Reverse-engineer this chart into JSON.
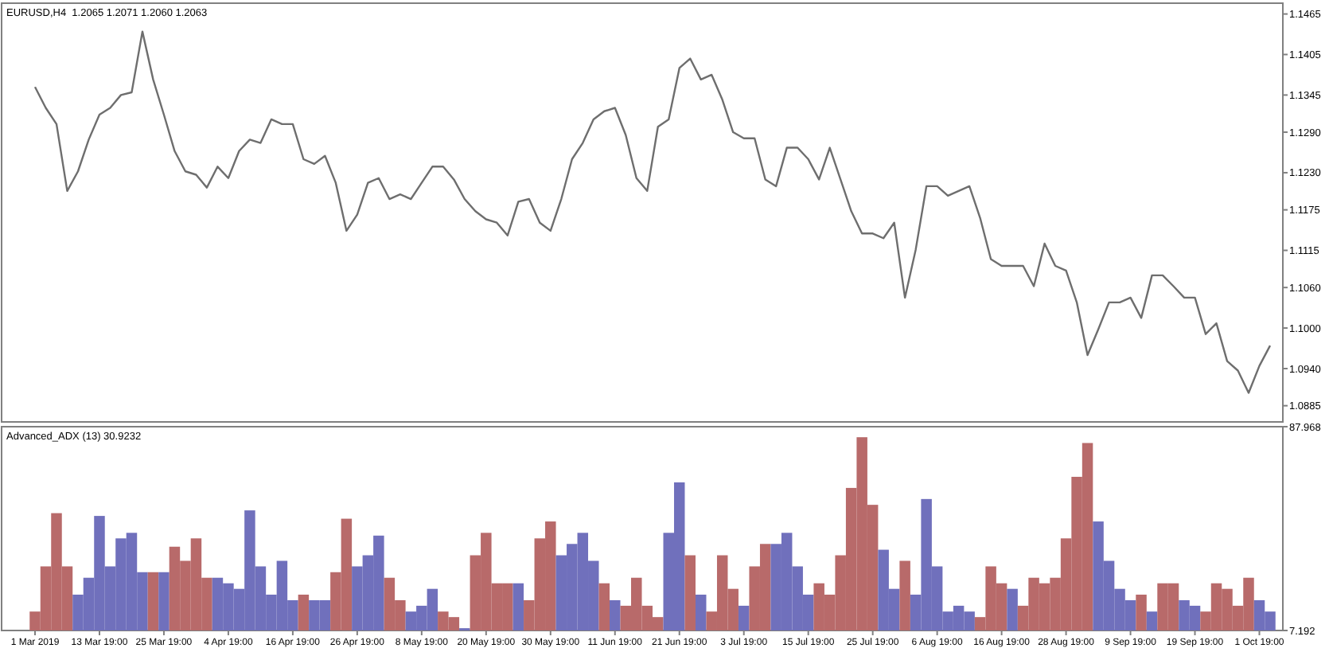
{
  "chart_data": [
    {
      "type": "line",
      "title": "EURUSD,H4  1.2065 1.2071 1.2060 1.2063",
      "tick_labels": "y",
      "color": "#6e6e6e",
      "values": [
        1.1357,
        1.1326,
        1.1302,
        1.1203,
        1.1232,
        1.1279,
        1.1316,
        1.1326,
        1.1345,
        1.1349,
        1.1439,
        1.1368,
        1.1316,
        1.1262,
        1.1232,
        1.1227,
        1.1208,
        1.1239,
        1.1222,
        1.1262,
        1.1279,
        1.1274,
        1.1309,
        1.1302,
        1.1302,
        1.125,
        1.1243,
        1.1255,
        1.1215,
        1.1144,
        1.1168,
        1.1215,
        1.1222,
        1.1191,
        1.1198,
        1.1191,
        1.1215,
        1.1239,
        1.1239,
        1.122,
        1.1191,
        1.1173,
        1.1161,
        1.1156,
        1.1137,
        1.1187,
        1.1191,
        1.1156,
        1.1144,
        1.1191,
        1.125,
        1.1274,
        1.1309,
        1.1321,
        1.1326,
        1.1286,
        1.1222,
        1.1203,
        1.1298,
        1.1309,
        1.1385,
        1.1399,
        1.1368,
        1.1375,
        1.1338,
        1.129,
        1.1281,
        1.1281,
        1.122,
        1.121,
        1.1267,
        1.1267,
        1.125,
        1.122,
        1.1267,
        1.122,
        1.1173,
        1.114,
        1.114,
        1.1133,
        1.1156,
        1.1045,
        1.1116,
        1.121,
        1.121,
        1.1196,
        1.1203,
        1.121,
        1.1163,
        1.1102,
        1.1092,
        1.1092,
        1.1092,
        1.1062,
        1.1125,
        1.1092,
        1.1085,
        1.1038,
        1.096,
        1.0998,
        1.1038,
        1.1038,
        1.1045,
        1.1015,
        1.1078,
        1.1078,
        1.1062,
        1.1045,
        1.1045,
        1.0991,
        1.1007,
        1.0951,
        1.0937,
        1.0904,
        1.0944,
        1.0974
      ],
      "ylim": [
        1.0861,
        1.1481
      ],
      "yticks": [
        1.1465,
        1.1405,
        1.1345,
        {
          "value": 1.129,
          "label": "1.1290"
        },
        {
          "value": 1.123,
          "label": "1.1230"
        },
        1.1175,
        1.1115,
        {
          "value": 1.106,
          "label": "1.1060"
        },
        {
          "value": 1.1,
          "label": "1.1000"
        },
        {
          "value": 1.094,
          "label": "1.0940"
        },
        1.0885
      ]
    },
    {
      "type": "bar",
      "title": "Advanced_ADX (13) 30.9232",
      "categories": [
        "1 Mar 2019",
        null,
        null,
        null,
        null,
        null,
        "13 Mar 19:00",
        null,
        null,
        null,
        null,
        null,
        "25 Mar 19:00",
        null,
        null,
        null,
        null,
        null,
        "4 Apr 19:00",
        null,
        null,
        null,
        null,
        null,
        "16 Apr 19:00",
        null,
        null,
        null,
        null,
        null,
        "26 Apr 19:00",
        null,
        null,
        null,
        null,
        null,
        "8 May 19:00",
        null,
        null,
        null,
        null,
        null,
        "20 May 19:00",
        null,
        null,
        null,
        null,
        null,
        "30 May 19:00",
        null,
        null,
        null,
        null,
        null,
        "11 Jun 19:00",
        null,
        null,
        null,
        null,
        null,
        "21 Jun 19:00",
        null,
        null,
        null,
        null,
        null,
        "3 Jul 19:00",
        null,
        null,
        null,
        null,
        null,
        "15 Jul 19:00",
        null,
        null,
        null,
        null,
        null,
        "25 Jul 19:00",
        null,
        null,
        null,
        null,
        null,
        "6 Aug 19:00",
        null,
        null,
        null,
        null,
        null,
        "16 Aug 19:00",
        null,
        null,
        null,
        null,
        null,
        "28 Aug 19:00",
        null,
        null,
        null,
        null,
        null,
        "9 Sep 19:00",
        null,
        null,
        null,
        null,
        null,
        "19 Sep 19:00",
        null,
        null,
        null,
        null,
        null,
        "1 Oct 19:00",
        null
      ],
      "values": [
        14.7,
        32.6,
        53.7,
        32.6,
        21.4,
        28.1,
        52.6,
        32.6,
        43.7,
        45.9,
        30.3,
        30.3,
        30.3,
        40.4,
        34.8,
        43.7,
        28.1,
        28.1,
        25.9,
        23.7,
        54.8,
        32.6,
        21.4,
        34.8,
        19.2,
        21.4,
        19.2,
        19.2,
        30.3,
        51.5,
        32.6,
        37.0,
        44.8,
        28.1,
        19.2,
        14.7,
        17.0,
        23.7,
        14.7,
        12.5,
        8.1,
        37.0,
        45.9,
        25.9,
        25.9,
        25.9,
        19.2,
        43.7,
        50.4,
        37.0,
        41.5,
        45.9,
        34.8,
        25.9,
        19.2,
        17.0,
        28.1,
        17.0,
        12.5,
        45.9,
        65.9,
        37.0,
        21.4,
        14.7,
        37.0,
        23.7,
        17.0,
        32.6,
        41.5,
        41.5,
        45.9,
        32.6,
        21.4,
        25.9,
        21.4,
        37.0,
        63.7,
        83.8,
        57.0,
        39.2,
        23.7,
        34.8,
        21.4,
        59.3,
        32.6,
        14.7,
        17.0,
        14.7,
        12.5,
        32.6,
        25.9,
        23.7,
        17.0,
        28.1,
        25.9,
        28.1,
        43.7,
        68.1,
        81.5,
        50.4,
        34.8,
        23.7,
        19.2,
        21.4,
        14.7,
        25.9,
        25.9,
        19.2,
        17.0,
        14.7,
        25.9,
        23.7,
        17.0,
        28.1,
        19.2,
        14.7
      ],
      "colors": [
        "#b86a6a",
        "#b86a6a",
        "#b86a6a",
        "#b86a6a",
        "#7070bc",
        "#7070bc",
        "#7070bc",
        "#7070bc",
        "#7070bc",
        "#7070bc",
        "#7070bc",
        "#b86a6a",
        "#7070bc",
        "#b86a6a",
        "#b86a6a",
        "#b86a6a",
        "#b86a6a",
        "#7070bc",
        "#7070bc",
        "#7070bc",
        "#7070bc",
        "#7070bc",
        "#7070bc",
        "#7070bc",
        "#7070bc",
        "#b86a6a",
        "#7070bc",
        "#7070bc",
        "#b86a6a",
        "#b86a6a",
        "#7070bc",
        "#7070bc",
        "#7070bc",
        "#b86a6a",
        "#b86a6a",
        "#7070bc",
        "#7070bc",
        "#7070bc",
        "#b86a6a",
        "#b86a6a",
        "#7070bc",
        "#b86a6a",
        "#b86a6a",
        "#b86a6a",
        "#b86a6a",
        "#7070bc",
        "#b86a6a",
        "#b86a6a",
        "#b86a6a",
        "#7070bc",
        "#7070bc",
        "#7070bc",
        "#7070bc",
        "#b86a6a",
        "#7070bc",
        "#b86a6a",
        "#b86a6a",
        "#b86a6a",
        "#b86a6a",
        "#7070bc",
        "#7070bc",
        "#b86a6a",
        "#7070bc",
        "#b86a6a",
        "#b86a6a",
        "#b86a6a",
        "#7070bc",
        "#b86a6a",
        "#b86a6a",
        "#7070bc",
        "#7070bc",
        "#7070bc",
        "#7070bc",
        "#b86a6a",
        "#b86a6a",
        "#b86a6a",
        "#b86a6a",
        "#b86a6a",
        "#b86a6a",
        "#7070bc",
        "#7070bc",
        "#b86a6a",
        "#7070bc",
        "#7070bc",
        "#7070bc",
        "#7070bc",
        "#7070bc",
        "#7070bc",
        "#b86a6a",
        "#b86a6a",
        "#b86a6a",
        "#7070bc",
        "#b86a6a",
        "#b86a6a",
        "#b86a6a",
        "#b86a6a",
        "#b86a6a",
        "#b86a6a",
        "#b86a6a",
        "#7070bc",
        "#7070bc",
        "#7070bc",
        "#7070bc",
        "#b86a6a",
        "#7070bc",
        "#b86a6a",
        "#b86a6a",
        "#7070bc",
        "#7070bc",
        "#b86a6a",
        "#b86a6a",
        "#b86a6a",
        "#b86a6a",
        "#b86a6a",
        "#7070bc",
        "#7070bc"
      ],
      "ylim": [
        7.192,
        87.968
      ],
      "yticks": [
        7.192,
        87.968
      ]
    }
  ]
}
